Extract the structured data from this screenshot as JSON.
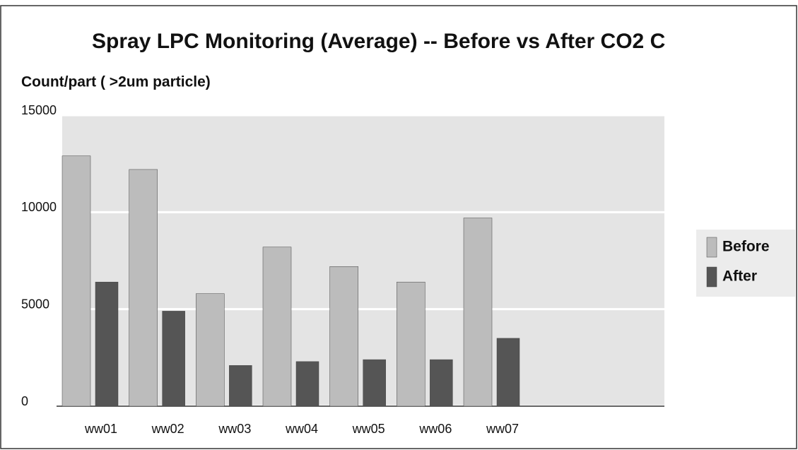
{
  "chart_data": {
    "type": "bar",
    "title": "Spray LPC Monitoring (Average) -- Before vs After CO2 C",
    "y_label": "Count/part ( >2um particle)",
    "categories": [
      "ww01",
      "ww02",
      "ww03",
      "ww04",
      "ww05",
      "ww06",
      "ww07",
      null,
      null
    ],
    "series": [
      {
        "name": "Before",
        "color": "#bcbcbc",
        "values": [
          12900,
          12200,
          5800,
          8200,
          7200,
          6400,
          9700,
          null,
          null
        ]
      },
      {
        "name": "After",
        "color": "#555555",
        "values": [
          6400,
          4900,
          2100,
          2300,
          2400,
          2400,
          3500,
          null,
          null
        ]
      }
    ],
    "ylim": [
      0,
      15000
    ],
    "yticks": [
      0,
      5000,
      10000,
      15000
    ],
    "grid": true,
    "legend": "right"
  }
}
